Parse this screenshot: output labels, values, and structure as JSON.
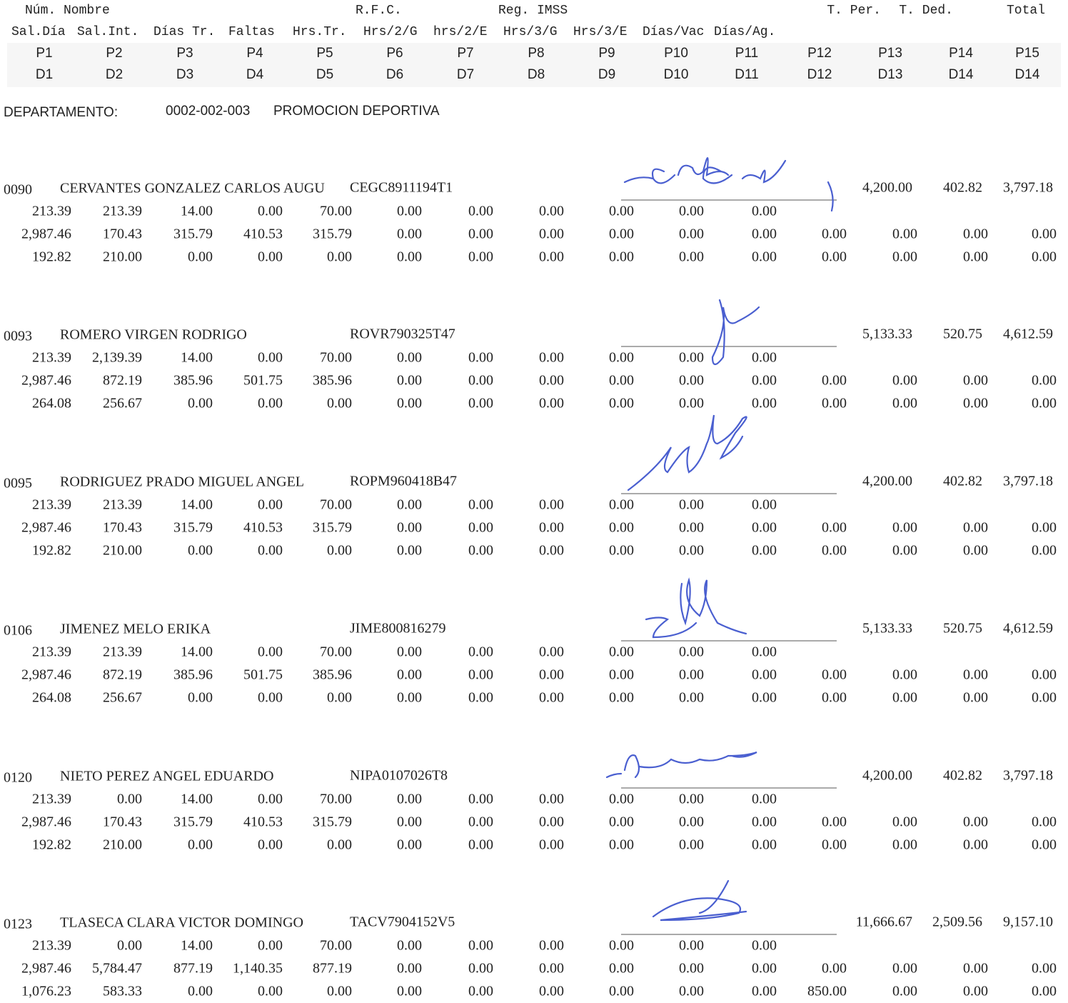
{
  "header": {
    "row1": [
      "Núm. Nombre",
      "R.F.C.",
      "Reg. IMSS",
      "T. Per.",
      "T. Ded.",
      "Total"
    ],
    "row2": [
      "Sal.Día",
      "Sal.Int.",
      "Días Tr.",
      "Faltas",
      "Hrs.Tr.",
      "Hrs/2/G",
      "hrs/2/E",
      "Hrs/3/G",
      "Hrs/3/E",
      "Días/Vac",
      "Días/Ag."
    ],
    "perceptions": [
      "P1",
      "P2",
      "P3",
      "P4",
      "P5",
      "P6",
      "P7",
      "P8",
      "P9",
      "P10",
      "P11",
      "P12",
      "P13",
      "P14",
      "P15"
    ],
    "deductions": [
      "D1",
      "D2",
      "D3",
      "D4",
      "D5",
      "D6",
      "D7",
      "D8",
      "D9",
      "D10",
      "D11",
      "D12",
      "D13",
      "D14",
      "D14"
    ]
  },
  "department": {
    "label": "DEPARTAMENTO:",
    "code": "0002-002-003",
    "name": "PROMOCION DEPORTIVA"
  },
  "employees": [
    {
      "number": "0090",
      "name": "CERVANTES GONZALEZ CARLOS AUGU",
      "rfc": "CEGC8911194T1",
      "totals": [
        "4,200.00",
        "402.82",
        "3,797.18"
      ],
      "rows": [
        [
          "213.39",
          "213.39",
          "14.00",
          "0.00",
          "70.00",
          "0.00",
          "0.00",
          "0.00",
          "0.00",
          "0.00",
          "0.00"
        ],
        [
          "2,987.46",
          "170.43",
          "315.79",
          "410.53",
          "315.79",
          "0.00",
          "0.00",
          "0.00",
          "0.00",
          "0.00",
          "0.00",
          "0.00",
          "0.00",
          "0.00",
          "0.00"
        ],
        [
          "192.82",
          "210.00",
          "0.00",
          "0.00",
          "0.00",
          "0.00",
          "0.00",
          "0.00",
          "0.00",
          "0.00",
          "0.00",
          "0.00",
          "0.00",
          "0.00",
          "0.00"
        ]
      ]
    },
    {
      "number": "0093",
      "name": "ROMERO VIRGEN RODRIGO",
      "rfc": "ROVR790325T47",
      "totals": [
        "5,133.33",
        "520.75",
        "4,612.59"
      ],
      "rows": [
        [
          "213.39",
          "2,139.39",
          "14.00",
          "0.00",
          "70.00",
          "0.00",
          "0.00",
          "0.00",
          "0.00",
          "0.00",
          "0.00"
        ],
        [
          "2,987.46",
          "872.19",
          "385.96",
          "501.75",
          "385.96",
          "0.00",
          "0.00",
          "0.00",
          "0.00",
          "0.00",
          "0.00",
          "0.00",
          "0.00",
          "0.00",
          "0.00"
        ],
        [
          "264.08",
          "256.67",
          "0.00",
          "0.00",
          "0.00",
          "0.00",
          "0.00",
          "0.00",
          "0.00",
          "0.00",
          "0.00",
          "0.00",
          "0.00",
          "0.00",
          "0.00"
        ]
      ]
    },
    {
      "number": "0095",
      "name": "RODRIGUEZ PRADO MIGUEL ANGEL",
      "rfc": "ROPM960418B47",
      "totals": [
        "4,200.00",
        "402.82",
        "3,797.18"
      ],
      "rows": [
        [
          "213.39",
          "213.39",
          "14.00",
          "0.00",
          "70.00",
          "0.00",
          "0.00",
          "0.00",
          "0.00",
          "0.00",
          "0.00"
        ],
        [
          "2,987.46",
          "170.43",
          "315.79",
          "410.53",
          "315.79",
          "0.00",
          "0.00",
          "0.00",
          "0.00",
          "0.00",
          "0.00",
          "0.00",
          "0.00",
          "0.00",
          "0.00"
        ],
        [
          "192.82",
          "210.00",
          "0.00",
          "0.00",
          "0.00",
          "0.00",
          "0.00",
          "0.00",
          "0.00",
          "0.00",
          "0.00",
          "0.00",
          "0.00",
          "0.00",
          "0.00"
        ]
      ]
    },
    {
      "number": "0106",
      "name": "JIMENEZ MELO ERIKA",
      "rfc": "JIME800816279",
      "totals": [
        "5,133.33",
        "520.75",
        "4,612.59"
      ],
      "rows": [
        [
          "213.39",
          "213.39",
          "14.00",
          "0.00",
          "70.00",
          "0.00",
          "0.00",
          "0.00",
          "0.00",
          "0.00",
          "0.00"
        ],
        [
          "2,987.46",
          "872.19",
          "385.96",
          "501.75",
          "385.96",
          "0.00",
          "0.00",
          "0.00",
          "0.00",
          "0.00",
          "0.00",
          "0.00",
          "0.00",
          "0.00",
          "0.00"
        ],
        [
          "264.08",
          "256.67",
          "0.00",
          "0.00",
          "0.00",
          "0.00",
          "0.00",
          "0.00",
          "0.00",
          "0.00",
          "0.00",
          "0.00",
          "0.00",
          "0.00",
          "0.00"
        ]
      ]
    },
    {
      "number": "0120",
      "name": "NIETO PEREZ ANGEL EDUARDO",
      "rfc": "NIPA0107026T8",
      "totals": [
        "4,200.00",
        "402.82",
        "3,797.18"
      ],
      "rows": [
        [
          "213.39",
          "0.00",
          "14.00",
          "0.00",
          "70.00",
          "0.00",
          "0.00",
          "0.00",
          "0.00",
          "0.00",
          "0.00"
        ],
        [
          "2,987.46",
          "170.43",
          "315.79",
          "410.53",
          "315.79",
          "0.00",
          "0.00",
          "0.00",
          "0.00",
          "0.00",
          "0.00",
          "0.00",
          "0.00",
          "0.00",
          "0.00"
        ],
        [
          "192.82",
          "210.00",
          "0.00",
          "0.00",
          "0.00",
          "0.00",
          "0.00",
          "0.00",
          "0.00",
          "0.00",
          "0.00",
          "0.00",
          "0.00",
          "0.00",
          "0.00"
        ]
      ]
    },
    {
      "number": "0123",
      "name": "TLASECA CLARA VICTOR DOMINGO",
      "rfc": "TACV7904152V5",
      "totals": [
        "11,666.67",
        "2,509.56",
        "9,157.10"
      ],
      "rows": [
        [
          "213.39",
          "0.00",
          "14.00",
          "0.00",
          "70.00",
          "0.00",
          "0.00",
          "0.00",
          "0.00",
          "0.00",
          "0.00"
        ],
        [
          "2,987.46",
          "5,784.47",
          "877.19",
          "1,140.35",
          "877.19",
          "0.00",
          "0.00",
          "0.00",
          "0.00",
          "0.00",
          "0.00",
          "0.00",
          "0.00",
          "0.00",
          "0.00"
        ],
        [
          "1,076.23",
          "583.33",
          "0.00",
          "0.00",
          "0.00",
          "0.00",
          "0.00",
          "0.00",
          "0.00",
          "0.00",
          "0.00",
          "850.00",
          "0.00",
          "0.00",
          "0.00"
        ]
      ]
    }
  ]
}
